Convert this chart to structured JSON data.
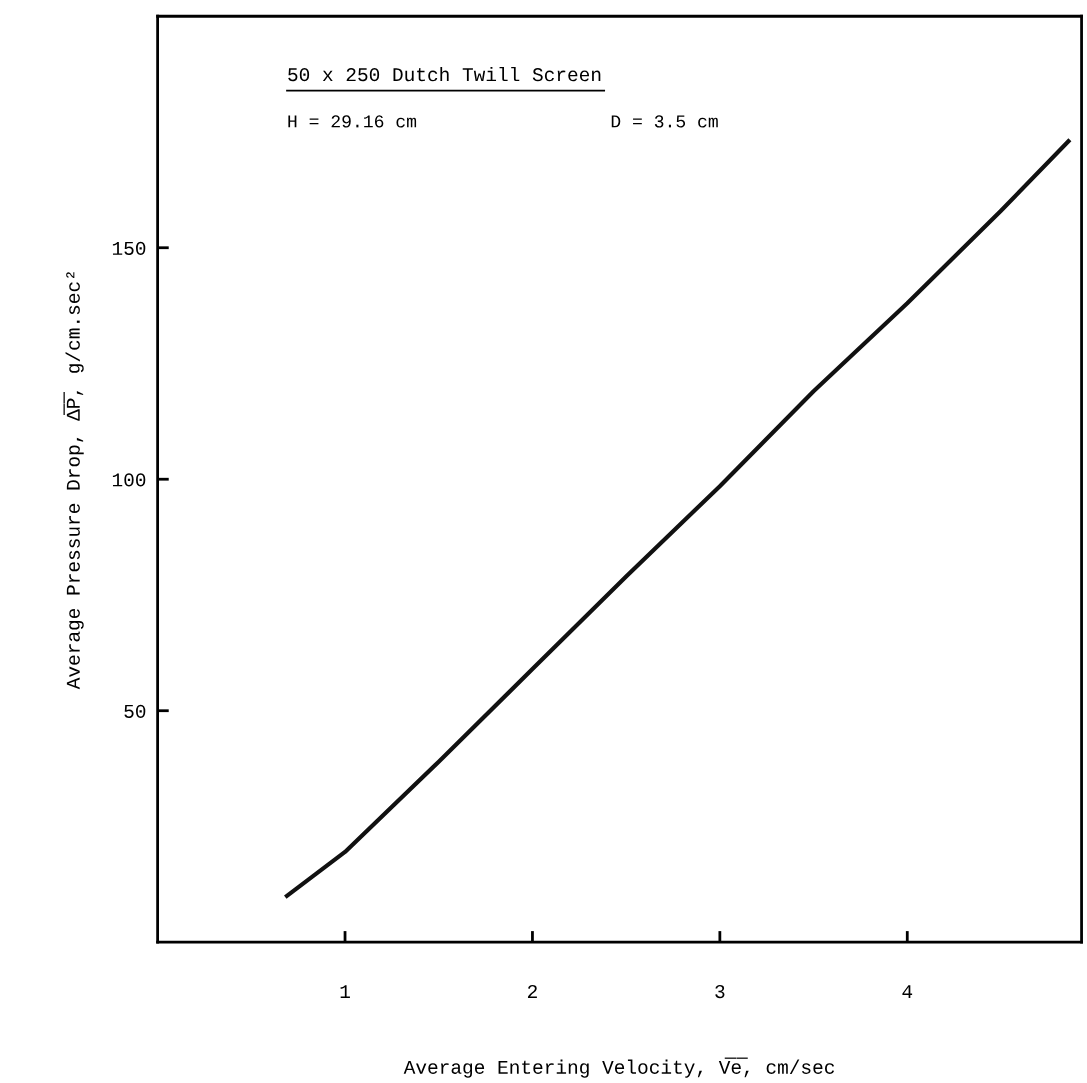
{
  "chart_data": {
    "type": "line",
    "xlabel": "Average Entering Velocity, V̅e̅, cm/sec",
    "ylabel": "Average Pressure Drop, Δ̅P̅, g/cm.sec²",
    "annotations": [
      "50 x 250 Dutch Twill Screen",
      "H = 29.16 cm",
      "D = 3.5 cm"
    ],
    "x": [
      0.69,
      1.0,
      1.5,
      2.0,
      2.5,
      3.0,
      3.5,
      4.0,
      4.5,
      4.86
    ],
    "series": [
      {
        "color": "#111111",
        "values": [
          10,
          19.5,
          39,
          59,
          79,
          98.5,
          119,
          138,
          158,
          173
        ]
      }
    ],
    "xlim": [
      0,
      4.93
    ],
    "ylim": [
      0,
      200
    ],
    "xticks": [
      1,
      2,
      3,
      4
    ],
    "yticks": [
      50,
      100,
      150
    ],
    "grid": false,
    "legend": false,
    "marker": "none",
    "line_style": "solid"
  }
}
